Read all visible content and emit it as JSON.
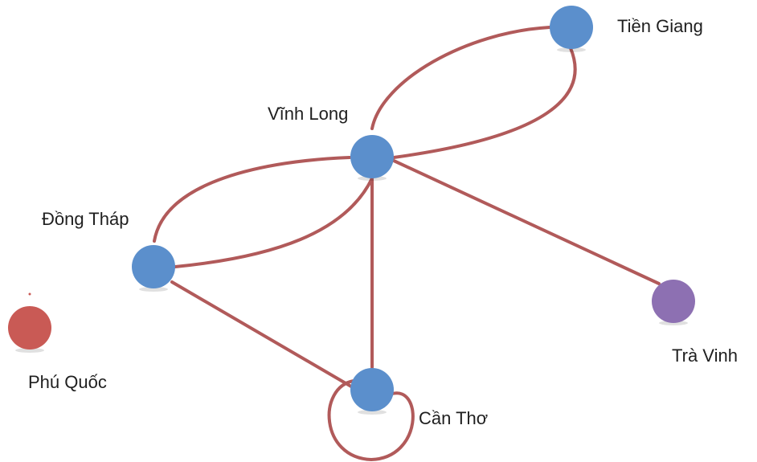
{
  "graph": {
    "nodes": [
      {
        "id": "tien-giang",
        "label": "Tiền Giang",
        "color": "#5b8fcc"
      },
      {
        "id": "vinh-long",
        "label": "Vĩnh Long",
        "color": "#5b8fcc"
      },
      {
        "id": "dong-thap",
        "label": "Đồng Tháp",
        "color": "#5b8fcc"
      },
      {
        "id": "can-tho",
        "label": "Cần Thơ",
        "color": "#5b8fcc"
      },
      {
        "id": "tra-vinh",
        "label": "Trà Vinh",
        "color": "#8d70b2"
      },
      {
        "id": "phu-quoc",
        "label": "Phú Quốc",
        "color": "#c95a55"
      }
    ],
    "edges": [
      {
        "from": "vinh-long",
        "to": "tien-giang"
      },
      {
        "from": "tien-giang",
        "to": "vinh-long"
      },
      {
        "from": "dong-thap",
        "to": "vinh-long"
      },
      {
        "from": "vinh-long",
        "to": "dong-thap"
      },
      {
        "from": "can-tho",
        "to": "vinh-long"
      },
      {
        "from": "vinh-long",
        "to": "tra-vinh"
      },
      {
        "from": "dong-thap",
        "to": "can-tho"
      },
      {
        "from": "can-tho",
        "to": "can-tho"
      }
    ],
    "edge_color": "#b15a5a"
  }
}
